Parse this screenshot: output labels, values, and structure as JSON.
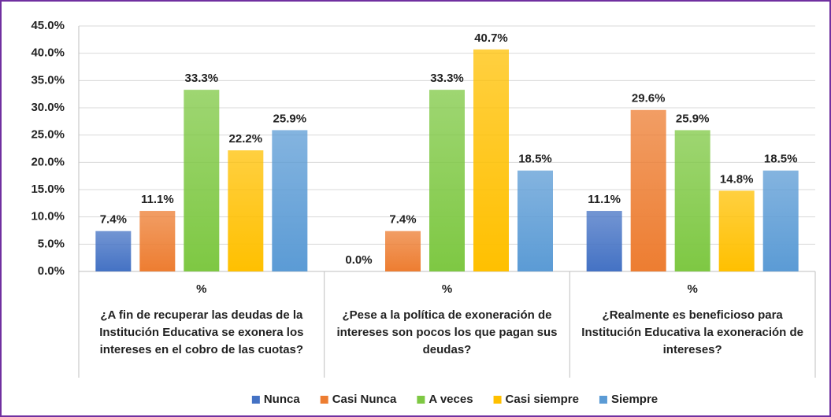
{
  "chart_data": {
    "type": "bar",
    "categories": [
      "¿A fin de recuperar las deudas de la Institución Educativa se exonera los intereses en el cobro de las cuotas?",
      "¿Pese a la política de exoneración de intereses son pocos los que pagan sus deudas?",
      "¿Realmente es beneficioso para Institución Educativa la exoneración de intereses?"
    ],
    "subcategories": [
      "%",
      "%",
      "%"
    ],
    "series": [
      {
        "name": "Nunca",
        "color": "#4472c4",
        "values": [
          7.4,
          0.0,
          11.1
        ],
        "value_labels": [
          "7.4%",
          "0.0%",
          "11.1%"
        ]
      },
      {
        "name": "Casi Nunca",
        "color": "#ed7d31",
        "values": [
          11.1,
          7.4,
          29.6
        ],
        "value_labels": [
          "11.1%",
          "7.4%",
          "29.6%"
        ]
      },
      {
        "name": "A veces",
        "color": "#7ec843",
        "values": [
          33.3,
          33.3,
          25.9
        ],
        "value_labels": [
          "33.3%",
          "33.3%",
          "25.9%"
        ]
      },
      {
        "name": "Casi siempre",
        "color": "#ffc000",
        "values": [
          22.2,
          40.7,
          14.8
        ],
        "value_labels": [
          "22.2%",
          "40.7%",
          "14.8%"
        ]
      },
      {
        "name": "Siempre",
        "color": "#5b9bd5",
        "values": [
          25.9,
          18.5,
          18.5
        ],
        "value_labels": [
          "25.9%",
          "18.5%",
          "18.5%"
        ]
      }
    ],
    "ylim": [
      0,
      45
    ],
    "yticks": [
      {
        "value": 0,
        "label": "0.0%"
      },
      {
        "value": 5,
        "label": "5.0%"
      },
      {
        "value": 10,
        "label": "10.0%"
      },
      {
        "value": 15,
        "label": "15.0%"
      },
      {
        "value": 20,
        "label": "20.0%"
      },
      {
        "value": 25,
        "label": "25.0%"
      },
      {
        "value": 30,
        "label": "30.0%"
      },
      {
        "value": 35,
        "label": "35.0%"
      },
      {
        "value": 40,
        "label": "40.0%"
      },
      {
        "value": 45,
        "label": "45.0%"
      }
    ],
    "grid": true,
    "legend": "bottom"
  }
}
